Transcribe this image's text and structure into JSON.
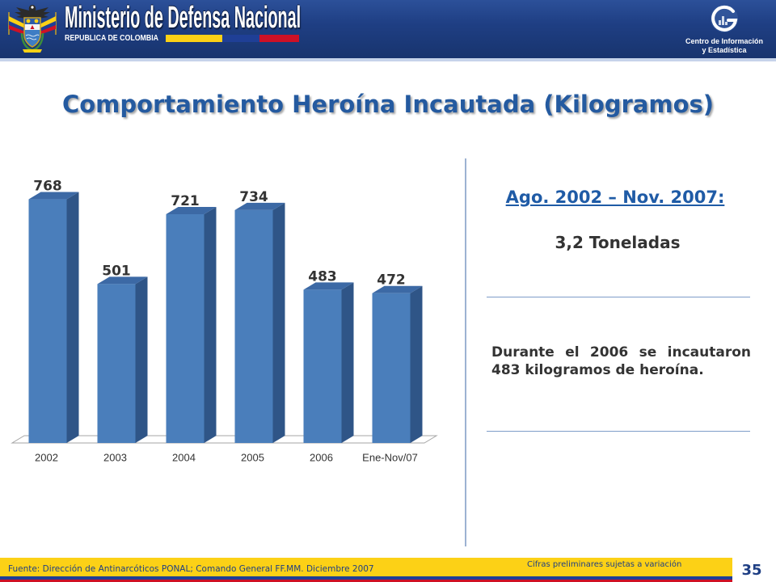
{
  "header": {
    "ministry": "Ministerio de Defensa Nacional",
    "country": "REPUBLICA DE COLOMBIA",
    "center_name_line1": "Centro de Información",
    "center_name_line2": "y Estadística"
  },
  "icons": {
    "coat_of_arms": "colombia-coat-of-arms-icon",
    "center_logo": "cie-logo-icon"
  },
  "chart_data": {
    "type": "bar",
    "title": "Comportamiento Heroína Incautada (Kilogramos)",
    "categories": [
      "2002",
      "2003",
      "2004",
      "2005",
      "2006",
      "Ene-Nov/07"
    ],
    "values": [
      768,
      501,
      721,
      734,
      483,
      472
    ],
    "ylim": [
      0,
      800
    ],
    "data_labels": true,
    "grid": false,
    "legend": false,
    "three_d": true
  },
  "summary": {
    "period": "Ago. 2002 – Nov. 2007:",
    "total": "3,2 Toneladas",
    "note": "Durante el 2006 se incautaron 483 kilogramos de heroína."
  },
  "footer": {
    "source": "Fuente: Dirección de Antinarcóticos PONAL; Comando General FF.MM. Diciembre 2007",
    "disclaimer": "Cifras preliminares sujetas a variación",
    "page_number": "35"
  },
  "colors": {
    "banner": "#1F3F84",
    "title": "#245AA0",
    "flag_yellow": "#FCD116",
    "flag_blue": "#1F3F96",
    "flag_red": "#CE1126",
    "bar_front": "#4A7EBB",
    "bar_side": "#2F5587",
    "bar_top": "#3C69A5",
    "text_dark": "#333333"
  }
}
